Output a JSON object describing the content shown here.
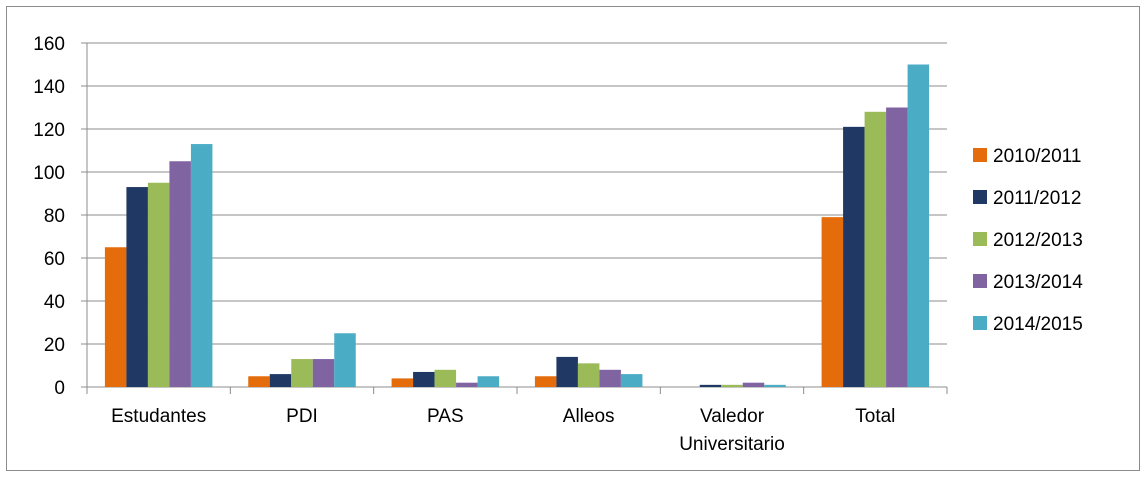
{
  "chart_data": {
    "type": "bar",
    "title": "",
    "xlabel": "",
    "ylabel": "",
    "ylim": [
      0,
      160
    ],
    "yticks": [
      0,
      20,
      40,
      60,
      80,
      100,
      120,
      140,
      160
    ],
    "grid": true,
    "legend_position": "right",
    "categories": [
      [
        "Estudantes"
      ],
      [
        "PDI"
      ],
      [
        "PAS"
      ],
      [
        "Alleos"
      ],
      [
        "Valedor",
        "Universitario"
      ],
      [
        "Total"
      ]
    ],
    "series": [
      {
        "name": "2010/2011",
        "color": "#e46c0a",
        "values": [
          65,
          5,
          4,
          5,
          0,
          79
        ]
      },
      {
        "name": "2011/2012",
        "color": "#1f3864",
        "values": [
          93,
          6,
          7,
          14,
          1,
          121
        ]
      },
      {
        "name": "2012/2013",
        "color": "#9bbb59",
        "values": [
          95,
          13,
          8,
          11,
          1,
          128
        ]
      },
      {
        "name": "2013/2014",
        "color": "#8064a2",
        "values": [
          105,
          13,
          2,
          8,
          2,
          130
        ]
      },
      {
        "name": "2014/2015",
        "color": "#4bacc6",
        "values": [
          113,
          25,
          5,
          6,
          1,
          150
        ]
      }
    ]
  }
}
